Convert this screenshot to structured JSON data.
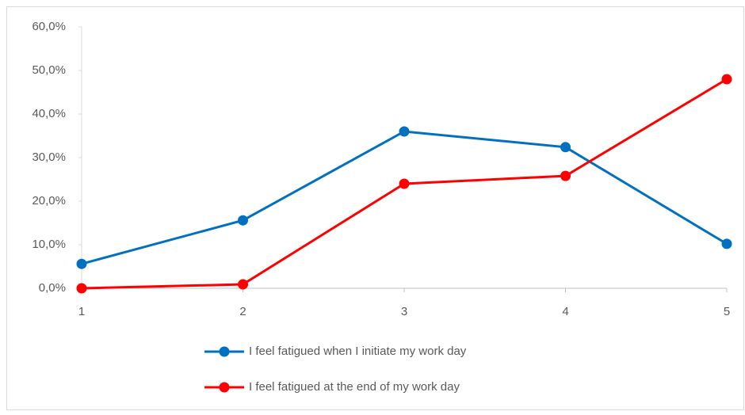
{
  "chart_data": {
    "type": "line",
    "categories": [
      "1",
      "2",
      "3",
      "4",
      "5"
    ],
    "series": [
      {
        "name": "I feel fatigued when I initiate my work day",
        "color": "#0070c0",
        "values": [
          5.6,
          15.6,
          36.0,
          32.4,
          10.2
        ]
      },
      {
        "name": "I feel fatigued at the end of my work day",
        "color": "#ff0000",
        "values": [
          0,
          0.9,
          24.0,
          25.8,
          48.0
        ]
      }
    ],
    "ylim": [
      0,
      60
    ],
    "yticks": [
      {
        "value": 0,
        "label": "0,0%"
      },
      {
        "value": 10,
        "label": "10,0%"
      },
      {
        "value": 20,
        "label": "20,0%"
      },
      {
        "value": 30,
        "label": "30,0%"
      },
      {
        "value": 40,
        "label": "40,0%"
      },
      {
        "value": 50,
        "label": "50,0%"
      },
      {
        "value": 60,
        "label": "60,0%"
      }
    ],
    "grid": false,
    "legend": "bottom"
  }
}
